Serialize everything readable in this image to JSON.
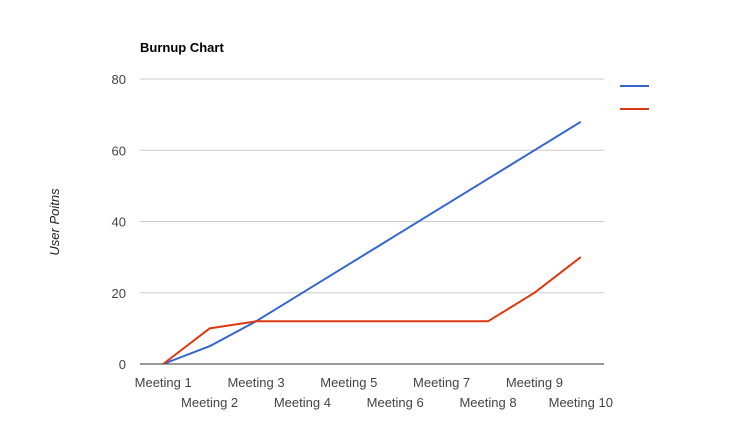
{
  "chart_data": {
    "type": "line",
    "title": "Burnup Chart",
    "xlabel": "",
    "ylabel": "User Poitns",
    "categories": [
      "Meeting 1",
      "Meeting 2",
      "Meeting 3",
      "Meeting 4",
      "Meeting 5",
      "Meeting 6",
      "Meeting 7",
      "Meeting 8",
      "Meeting 9",
      "Meeting 10"
    ],
    "ylim": [
      0,
      80
    ],
    "yticks": [
      0,
      20,
      40,
      60,
      80
    ],
    "grid": true,
    "legend": "right",
    "series": [
      {
        "color": "#3366cc",
        "values": [
          0,
          5,
          12,
          20,
          28,
          36,
          44,
          52,
          60,
          68
        ]
      },
      {
        "color": "#dc3912",
        "values": [
          0,
          10,
          12,
          12,
          12,
          12,
          12,
          12,
          20,
          30
        ]
      }
    ]
  }
}
